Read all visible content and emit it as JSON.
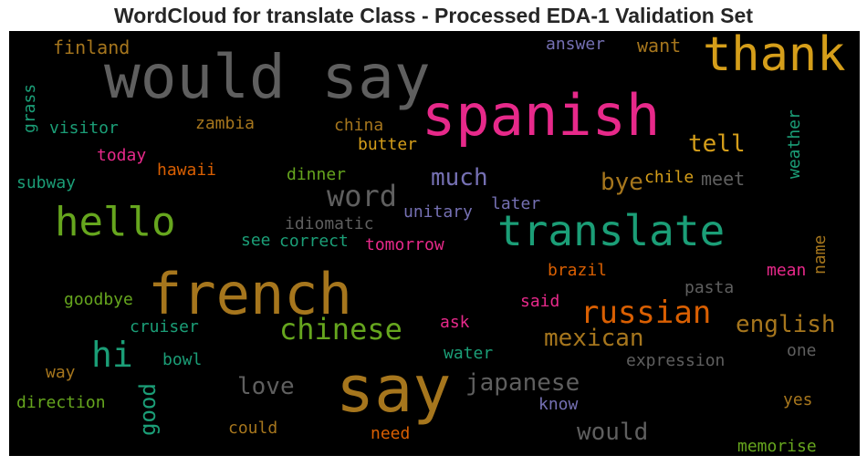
{
  "chart_data": {
    "type": "wordcloud",
    "title": "WordCloud for translate Class - Processed EDA-1 Validation Set",
    "background": "#000000",
    "palette": {
      "gray": "#5f5f5f",
      "gold": "#d59e1a",
      "magenta": "#e7298a",
      "teal": "#1b9e77",
      "green": "#66a61e",
      "brown": "#a6761d",
      "orange": "#d95f02",
      "purple": "#7570b3"
    },
    "words": [
      {
        "text": "would say",
        "color": "#5f5f5f"
      },
      {
        "text": "thank",
        "color": "#d59e1a"
      },
      {
        "text": "spanish",
        "color": "#e7298a"
      },
      {
        "text": "say",
        "color": "#a6761d"
      },
      {
        "text": "french",
        "color": "#a6761d"
      },
      {
        "text": "translate",
        "color": "#1b9e77"
      },
      {
        "text": "hello",
        "color": "#66a61e"
      },
      {
        "text": "chinese",
        "color": "#66a61e"
      },
      {
        "text": "russian",
        "color": "#d95f02"
      },
      {
        "text": "hi",
        "color": "#1b9e77"
      },
      {
        "text": "word",
        "color": "#5f5f5f"
      },
      {
        "text": "mexican",
        "color": "#a6761d"
      },
      {
        "text": "japanese",
        "color": "#5f5f5f"
      },
      {
        "text": "english",
        "color": "#a6761d"
      },
      {
        "text": "much",
        "color": "#7570b3"
      },
      {
        "text": "would",
        "color": "#5f5f5f"
      },
      {
        "text": "love",
        "color": "#5f5f5f"
      },
      {
        "text": "tell",
        "color": "#d59e1a"
      },
      {
        "text": "bye",
        "color": "#a6761d"
      },
      {
        "text": "good",
        "color": "#1b9e77"
      },
      {
        "text": "finland",
        "color": "#a6761d"
      },
      {
        "text": "answer",
        "color": "#7570b3"
      },
      {
        "text": "want",
        "color": "#a6761d"
      },
      {
        "text": "grass",
        "color": "#1b9e77"
      },
      {
        "text": "visitor",
        "color": "#1b9e77"
      },
      {
        "text": "zambia",
        "color": "#a6761d"
      },
      {
        "text": "china",
        "color": "#a6761d"
      },
      {
        "text": "weather",
        "color": "#1b9e77"
      },
      {
        "text": "butter",
        "color": "#d59e1a"
      },
      {
        "text": "today",
        "color": "#e7298a"
      },
      {
        "text": "hawaii",
        "color": "#d95f02"
      },
      {
        "text": "dinner",
        "color": "#66a61e"
      },
      {
        "text": "chile",
        "color": "#d59e1a"
      },
      {
        "text": "meet",
        "color": "#5f5f5f"
      },
      {
        "text": "subway",
        "color": "#1b9e77"
      },
      {
        "text": "later",
        "color": "#7570b3"
      },
      {
        "text": "unitary",
        "color": "#7570b3"
      },
      {
        "text": "idiomatic",
        "color": "#5f5f5f"
      },
      {
        "text": "see",
        "color": "#1b9e77"
      },
      {
        "text": "correct",
        "color": "#1b9e77"
      },
      {
        "text": "tomorrow",
        "color": "#e7298a"
      },
      {
        "text": "name",
        "color": "#a6761d"
      },
      {
        "text": "brazil",
        "color": "#d95f02"
      },
      {
        "text": "mean",
        "color": "#e7298a"
      },
      {
        "text": "pasta",
        "color": "#5f5f5f"
      },
      {
        "text": "goodbye",
        "color": "#66a61e"
      },
      {
        "text": "said",
        "color": "#e7298a"
      },
      {
        "text": "cruiser",
        "color": "#1b9e77"
      },
      {
        "text": "ask",
        "color": "#e7298a"
      },
      {
        "text": "one",
        "color": "#5f5f5f"
      },
      {
        "text": "bowl",
        "color": "#1b9e77"
      },
      {
        "text": "water",
        "color": "#1b9e77"
      },
      {
        "text": "way",
        "color": "#a6761d"
      },
      {
        "text": "expression",
        "color": "#5f5f5f"
      },
      {
        "text": "direction",
        "color": "#66a61e"
      },
      {
        "text": "know",
        "color": "#7570b3"
      },
      {
        "text": "yes",
        "color": "#a6761d"
      },
      {
        "text": "could",
        "color": "#a6761d"
      },
      {
        "text": "need",
        "color": "#d95f02"
      },
      {
        "text": "memorise",
        "color": "#66a61e"
      }
    ]
  }
}
